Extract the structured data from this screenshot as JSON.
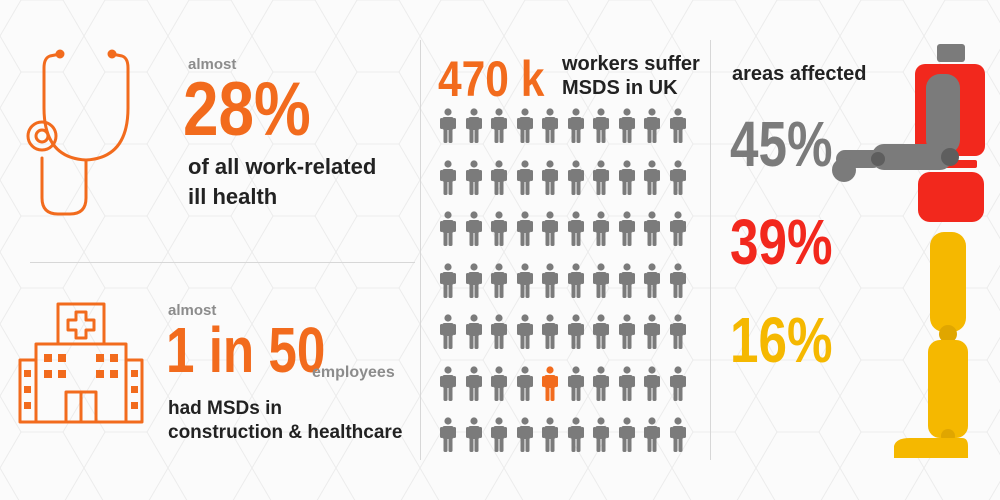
{
  "stat1": {
    "prefix": "almost",
    "value": "28%",
    "desc_line1": "of all work-related",
    "desc_line2": "ill health"
  },
  "stat2": {
    "prefix": "almost",
    "value": "1 in 50",
    "suffix": "employees",
    "desc_line1": "had MSDs in",
    "desc_line2": "construction & healthcare"
  },
  "workers": {
    "value": "470 k",
    "label_line1": "workers suffer",
    "label_line2": "MSDS in UK",
    "grid_rows": 7,
    "grid_cols": 10,
    "highlight_row": 5,
    "highlight_col": 4
  },
  "areas": {
    "title": "areas affected",
    "items": [
      {
        "value": "45%",
        "color": "#7b7b7b"
      },
      {
        "value": "39%",
        "color": "#f2281d"
      },
      {
        "value": "16%",
        "color": "#f5b800"
      }
    ]
  },
  "colors": {
    "orange": "#f26b1d",
    "gray": "#7b7b7b",
    "red": "#f2281d",
    "yellow": "#f5b800"
  },
  "icons": [
    "stethoscope-icon",
    "hospital-icon",
    "person-icon",
    "body-figure-icon"
  ]
}
